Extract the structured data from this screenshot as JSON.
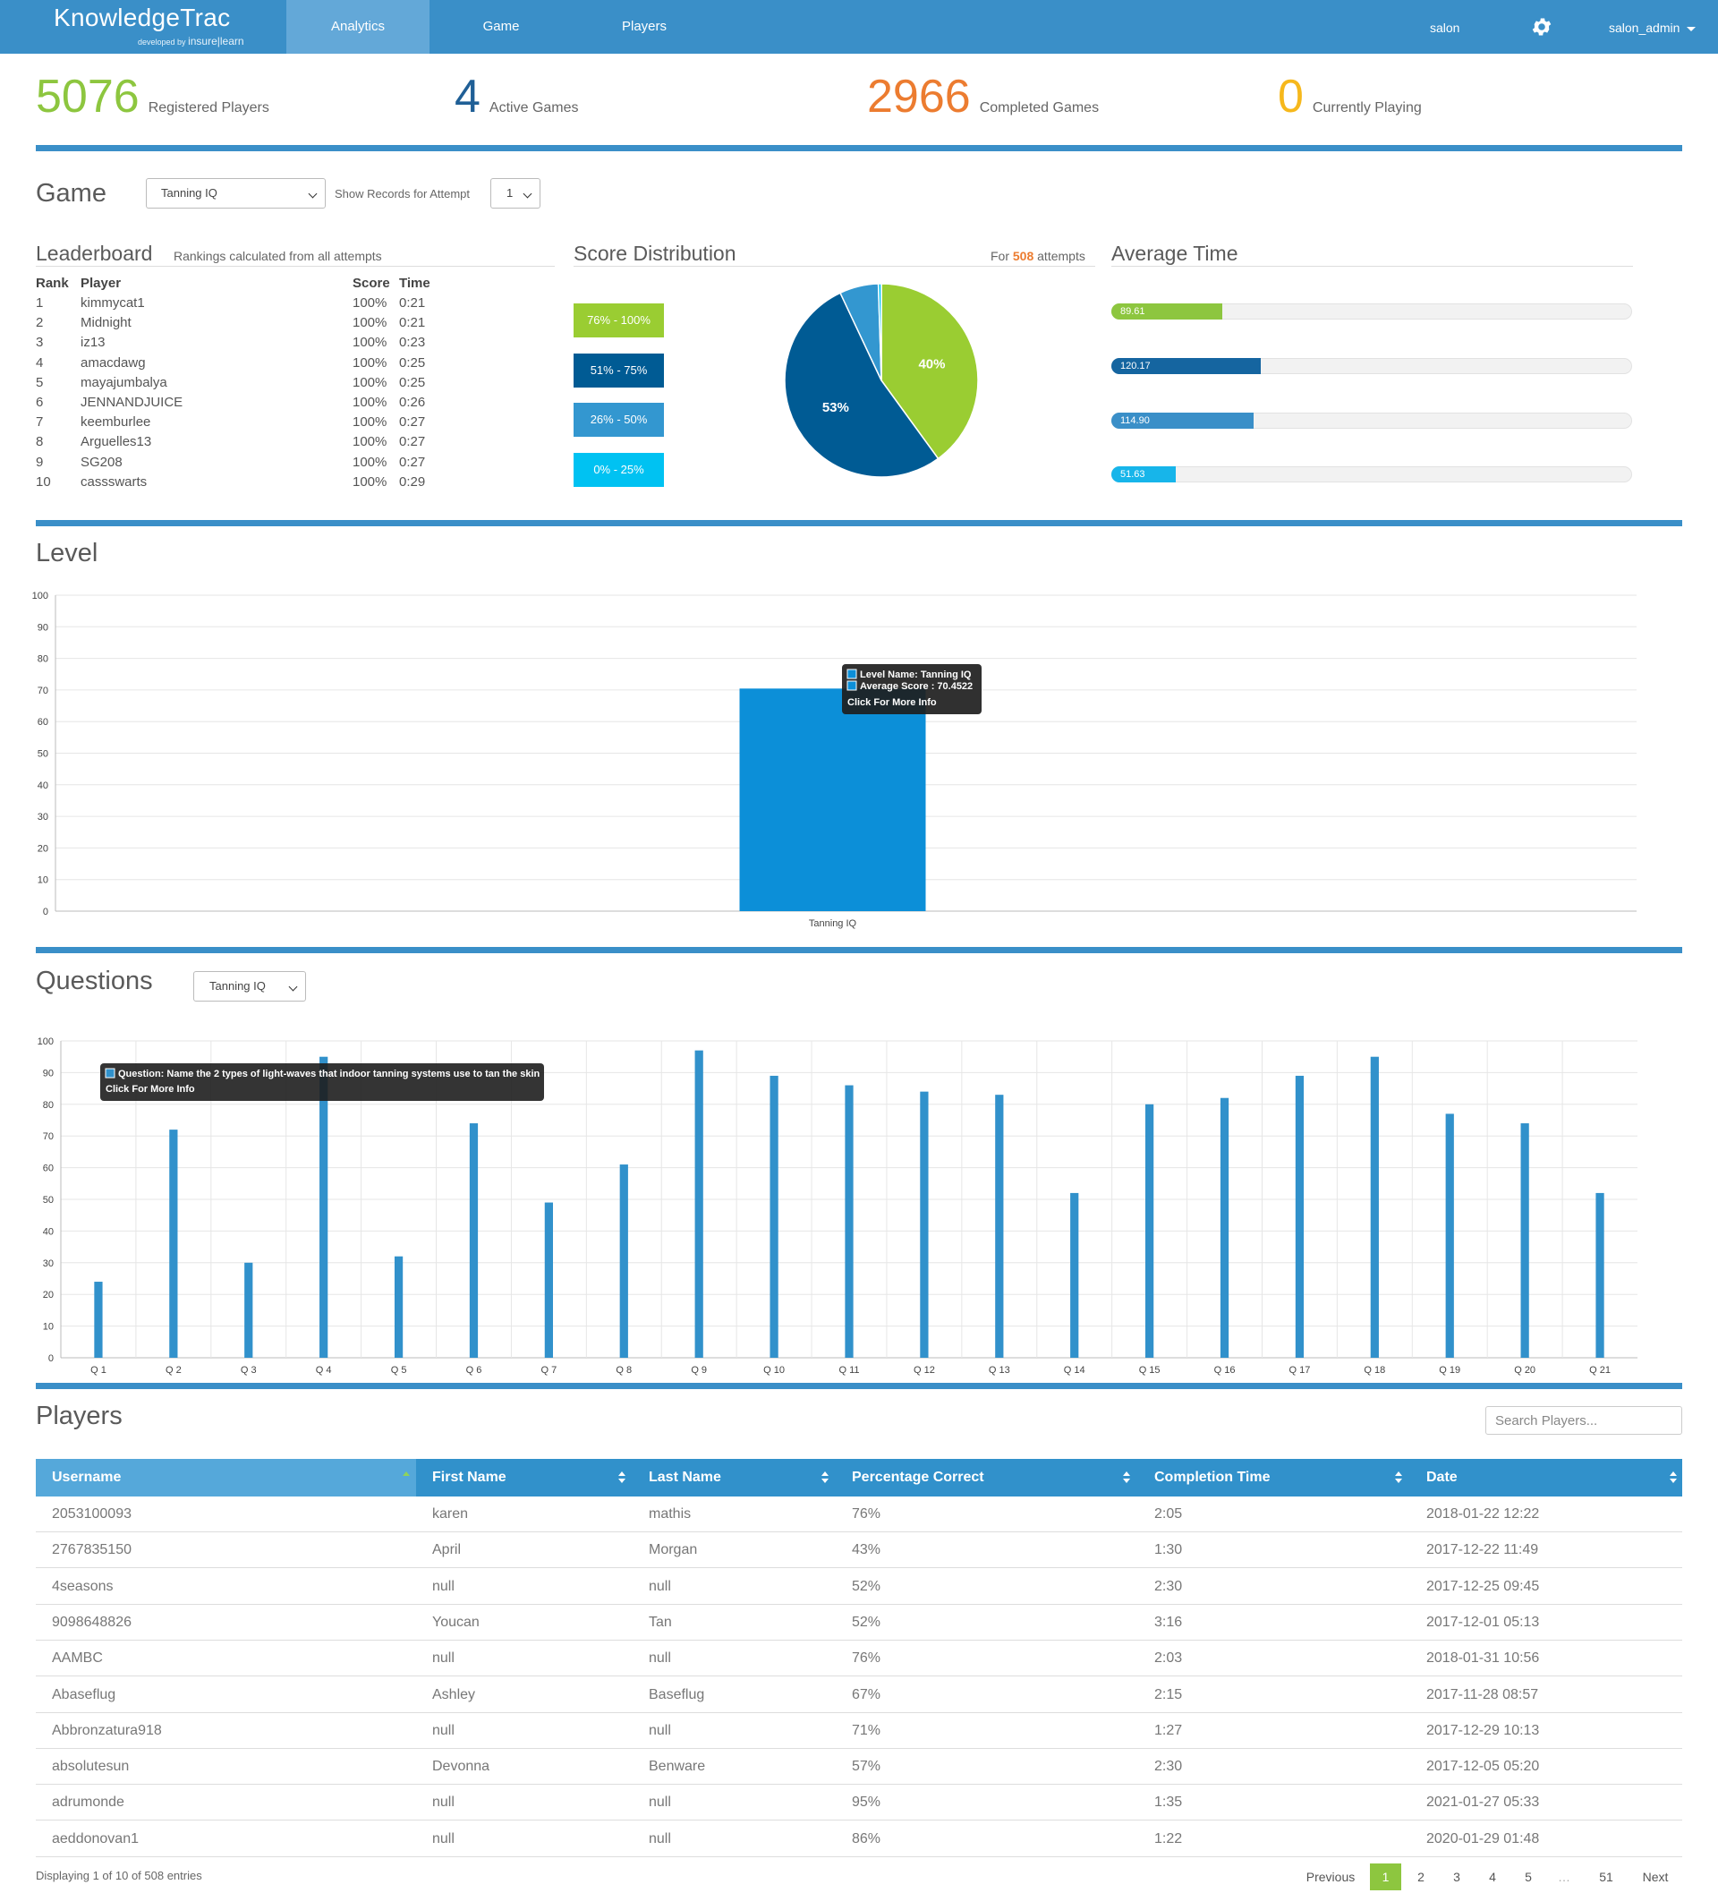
{
  "nav": {
    "logo": "KnowledgeTrac",
    "logo_sub_prefix": "developed by",
    "logo_sub_brand": "insure|learn",
    "tabs": [
      {
        "label": "Analytics"
      },
      {
        "label": "Game"
      },
      {
        "label": "Players"
      }
    ],
    "account": "salon",
    "user": "salon_admin"
  },
  "stats": [
    {
      "value": "5076",
      "label": "Registered Players",
      "color": "#8dc63f"
    },
    {
      "value": "4",
      "label": "Active Games",
      "color": "#1f5f96"
    },
    {
      "value": "2966",
      "label": "Completed Games",
      "color": "#ec7c30"
    },
    {
      "value": "0",
      "label": "Currently Playing",
      "color": "#f6b81c"
    }
  ],
  "game": {
    "heading": "Game",
    "selected_game": "Tanning IQ",
    "attempt_label": "Show Records for Attempt",
    "attempt_value": "1"
  },
  "leaderboard": {
    "heading": "Leaderboard",
    "subtitle": "Rankings calculated from all attempts",
    "headers": {
      "rank": "Rank",
      "player": "Player",
      "score": "Score",
      "time": "Time"
    },
    "rows": [
      {
        "rank": "1",
        "player": "kimmycat1",
        "score": "100%",
        "time": "0:21"
      },
      {
        "rank": "2",
        "player": "Midnight",
        "score": "100%",
        "time": "0:21"
      },
      {
        "rank": "3",
        "player": "iz13",
        "score": "100%",
        "time": "0:23"
      },
      {
        "rank": "4",
        "player": "amacdawg",
        "score": "100%",
        "time": "0:25"
      },
      {
        "rank": "5",
        "player": "mayajumbalya",
        "score": "100%",
        "time": "0:25"
      },
      {
        "rank": "6",
        "player": "JENNANDJUICE",
        "score": "100%",
        "time": "0:26"
      },
      {
        "rank": "7",
        "player": "keemburlee",
        "score": "100%",
        "time": "0:27"
      },
      {
        "rank": "8",
        "player": "Arguelles13",
        "score": "100%",
        "time": "0:27"
      },
      {
        "rank": "9",
        "player": "SG208",
        "score": "100%",
        "time": "0:27"
      },
      {
        "rank": "10",
        "player": "cassswarts",
        "score": "100%",
        "time": "0:29"
      }
    ]
  },
  "score_distribution": {
    "heading": "Score Distribution",
    "attempts_prefix": "For",
    "attempts_count": "508",
    "attempts_suffix": "attempts",
    "legend": [
      {
        "label": "76% - 100%",
        "color": "#9acd32"
      },
      {
        "label": "51% - 75%",
        "color": "#005b94"
      },
      {
        "label": "26% - 50%",
        "color": "#3397d0"
      },
      {
        "label": "0% - 25%",
        "color": "#00c2f2"
      }
    ]
  },
  "average_time": {
    "heading": "Average Time",
    "max": 420,
    "bars": [
      {
        "label": "89.61",
        "value": 89.61,
        "color": "#8dc63f"
      },
      {
        "label": "120.17",
        "value": 120.17,
        "color": "#1565a0"
      },
      {
        "label": "114.90",
        "value": 114.9,
        "color": "#3a8fc8"
      },
      {
        "label": "51.63",
        "value": 51.63,
        "color": "#17b5ea"
      }
    ]
  },
  "level": {
    "heading": "Level",
    "tooltip": {
      "line1": "Level Name: Tanning IQ",
      "line2": "Average Score : 70.4522",
      "line3": "Click For More Info"
    }
  },
  "questions": {
    "heading": "Questions",
    "selected_game": "Tanning IQ",
    "tooltip": {
      "line1": "Question: Name the 2 types of light-waves that indoor tanning systems use to tan the skin",
      "line2": "Click For More Info"
    }
  },
  "chart_data": [
    {
      "type": "pie",
      "labels": [
        "76% - 100%",
        "51% - 75%",
        "26% - 50%",
        "0% - 25%"
      ],
      "values": [
        40,
        53,
        6.5,
        0.5
      ],
      "colors": [
        "#9acd32",
        "#005b94",
        "#3397d0",
        "#00c2f2"
      ],
      "data_labels": [
        "40%",
        "53%",
        "",
        ""
      ]
    },
    {
      "type": "bar",
      "categories": [
        "Tanning IQ"
      ],
      "values": [
        70.4522
      ],
      "ylim": [
        0,
        100
      ],
      "yticks": [
        0,
        10,
        20,
        30,
        40,
        50,
        60,
        70,
        80,
        90,
        100
      ],
      "grid": true,
      "color": "#0c8fd8"
    },
    {
      "type": "bar",
      "categories": [
        "Q 1",
        "Q 2",
        "Q 3",
        "Q 4",
        "Q 5",
        "Q 6",
        "Q 7",
        "Q 8",
        "Q 9",
        "Q 10",
        "Q 11",
        "Q 12",
        "Q 13",
        "Q 14",
        "Q 15",
        "Q 16",
        "Q 17",
        "Q 18",
        "Q 19",
        "Q 20",
        "Q 21"
      ],
      "values": [
        24,
        72,
        30,
        95,
        32,
        74,
        49,
        61,
        97,
        89,
        86,
        84,
        83,
        52,
        80,
        82,
        89,
        95,
        77,
        74,
        52
      ],
      "ylim": [
        0,
        100
      ],
      "yticks": [
        0,
        10,
        20,
        30,
        40,
        50,
        60,
        70,
        80,
        90,
        100
      ],
      "grid": true,
      "color": "#3191cb"
    }
  ],
  "players": {
    "heading": "Players",
    "search_placeholder": "Search Players...",
    "columns": [
      "Username",
      "First Name",
      "Last Name",
      "Percentage Correct",
      "Completion Time",
      "Date"
    ],
    "rows": [
      [
        "2053100093",
        "karen",
        "mathis",
        "76%",
        "2:05",
        "2018-01-22 12:22"
      ],
      [
        "2767835150",
        "April",
        "Morgan",
        "43%",
        "1:30",
        "2017-12-22 11:49"
      ],
      [
        "4seasons",
        "null",
        "null",
        "52%",
        "2:30",
        "2017-12-25 09:45"
      ],
      [
        "9098648826",
        "Youcan",
        "Tan",
        "52%",
        "3:16",
        "2017-12-01 05:13"
      ],
      [
        "AAMBC",
        "null",
        "null",
        "76%",
        "2:03",
        "2018-01-31 10:56"
      ],
      [
        "Abaseflug",
        "Ashley",
        "Baseflug",
        "67%",
        "2:15",
        "2017-11-28 08:57"
      ],
      [
        "Abbronzatura918",
        "null",
        "null",
        "71%",
        "1:27",
        "2017-12-29 10:13"
      ],
      [
        "absolutesun",
        "Devonna",
        "Benware",
        "57%",
        "2:30",
        "2017-12-05 05:20"
      ],
      [
        "adrumonde",
        "null",
        "null",
        "95%",
        "1:35",
        "2021-01-27 05:33"
      ],
      [
        "aeddonovan1",
        "null",
        "null",
        "86%",
        "1:22",
        "2020-01-29 01:48"
      ]
    ],
    "footer": "Displaying 1 of 10 of 508 entries",
    "pagination": {
      "previous": "Previous",
      "pages": [
        "1",
        "2",
        "3",
        "4",
        "5"
      ],
      "ellipsis": "…",
      "last": "51",
      "next": "Next"
    }
  }
}
